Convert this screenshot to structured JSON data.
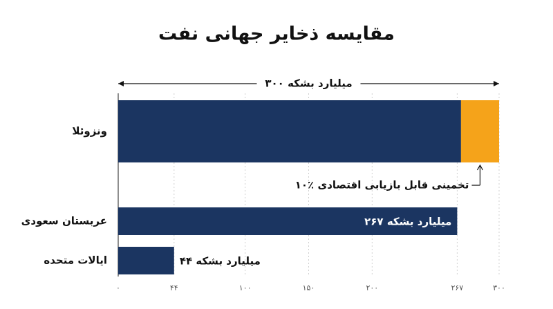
{
  "chart_data": {
    "type": "bar",
    "orientation": "horizontal",
    "stacked": true,
    "title": "مقایسه ذخایر جهانی نفت",
    "span_label": "۳۰۰ میلیارد بشکه",
    "annotation": "۱۰٪ تخمینی قابل بازیابی اقتصادی",
    "categories": [
      "ونزوئلا",
      "عربستان سعودی",
      "ایالات متحده"
    ],
    "series": [
      {
        "color": "#1b3561",
        "values": [
          270,
          267,
          44
        ],
        "value_labels": [
          null,
          "۲۶۷ میلیارد بشکه",
          "۴۴ میلیارد بشکه"
        ]
      },
      {
        "color": "#f5a31a",
        "values": [
          30,
          null,
          null
        ]
      }
    ],
    "xlim": [
      0,
      300
    ],
    "xticks": [
      {
        "value": 0,
        "label": "۰"
      },
      {
        "value": 44,
        "label": "۴۴"
      },
      {
        "value": 100,
        "label": "۱۰۰"
      },
      {
        "value": 150,
        "label": "۱۵۰"
      },
      {
        "value": 200,
        "label": "۲۰۰"
      },
      {
        "value": 267,
        "label": "۲۶۷"
      },
      {
        "value": 300,
        "label": "۳۰۰"
      }
    ],
    "grid": true
  }
}
